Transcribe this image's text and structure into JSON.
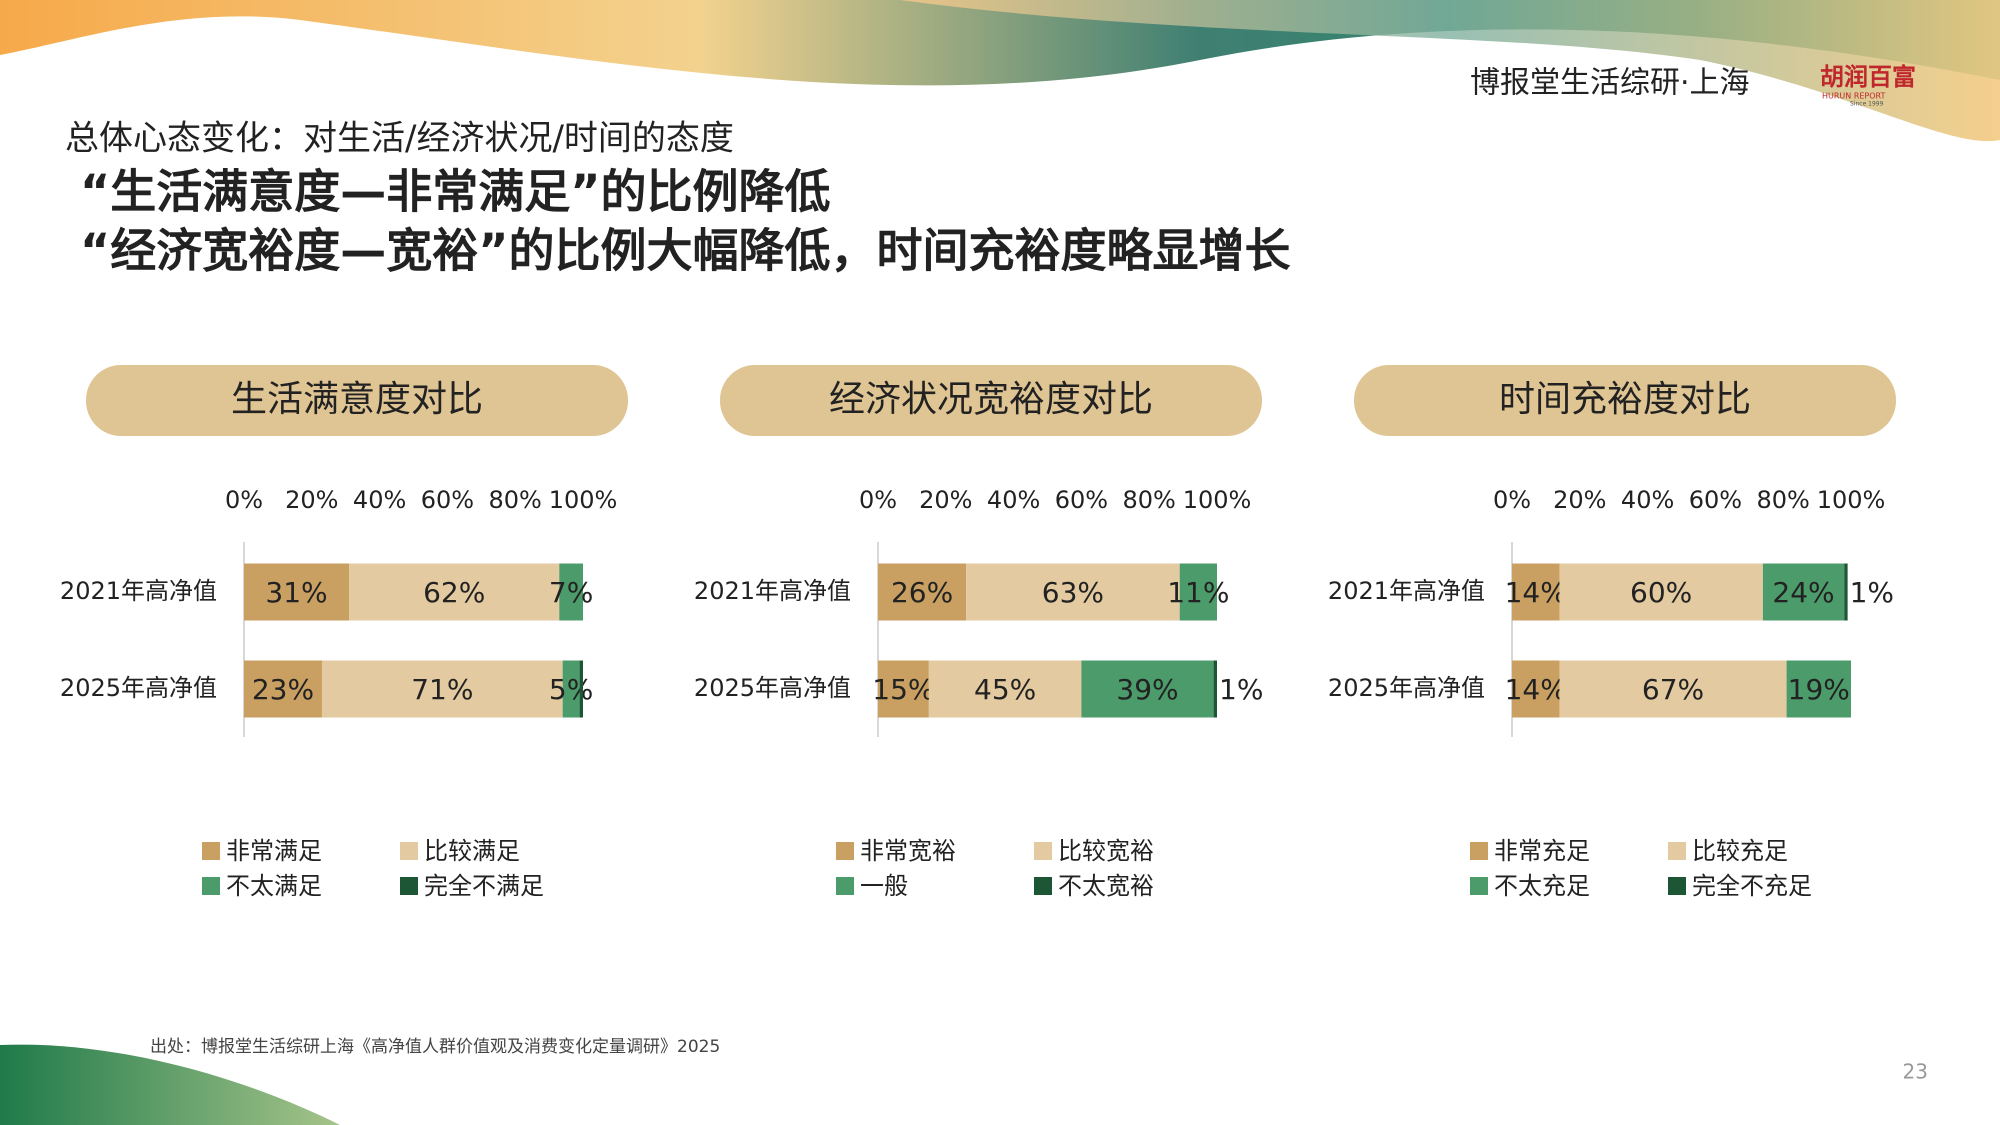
{
  "header": {
    "subtitle": "总体心态变化：对生活/经济状况/时间的态度",
    "headlines": [
      "“生活满意度—非常满足”的比例降低",
      "“经济宽裕度—宽裕”的比例大幅降低，时间充裕度略显增长"
    ],
    "brand": "博报堂生活综研·上海",
    "logo": "胡润百富",
    "logo_sub": "HURUN REPORT",
    "logo_since": "Since 1999"
  },
  "chart_data": [
    {
      "type": "bar",
      "orientation": "horizontal",
      "stacked": true,
      "title": "生活满意度对比",
      "categories": [
        "2021年高净值",
        "2025年高净值"
      ],
      "xlim": [
        0,
        100
      ],
      "xticks": [
        {
          "value": 0,
          "label": "0%"
        },
        {
          "value": 20,
          "label": "20%"
        },
        {
          "value": 40,
          "label": "40%"
        },
        {
          "value": 60,
          "label": "60%"
        },
        {
          "value": 80,
          "label": "80%"
        },
        {
          "value": 100,
          "label": "100%"
        }
      ],
      "series": [
        {
          "name": "非常满足",
          "color": "#c9a062",
          "values": [
            31,
            23
          ],
          "value_labels": [
            "31%",
            "23%"
          ]
        },
        {
          "name": "比较满足",
          "color": "#e3caa0",
          "values": [
            62,
            71
          ],
          "value_labels": [
            "62%",
            "71%"
          ]
        },
        {
          "name": "不太满足",
          "color": "#4c9b6b",
          "values": [
            7,
            5
          ],
          "value_labels": [
            "7%",
            "5%"
          ]
        },
        {
          "name": "完全不满足",
          "color": "#1d5634",
          "values": [
            0,
            1
          ]
        }
      ]
    },
    {
      "type": "bar",
      "orientation": "horizontal",
      "stacked": true,
      "title": "经济状况宽裕度对比",
      "categories": [
        "2021年高净值",
        "2025年高净值"
      ],
      "xlim": [
        0,
        100
      ],
      "xticks": [
        {
          "value": 0,
          "label": "0%"
        },
        {
          "value": 20,
          "label": "20%"
        },
        {
          "value": 40,
          "label": "40%"
        },
        {
          "value": 60,
          "label": "60%"
        },
        {
          "value": 80,
          "label": "80%"
        },
        {
          "value": 100,
          "label": "100%"
        }
      ],
      "series": [
        {
          "name": "非常宽裕",
          "color": "#c9a062",
          "values": [
            26,
            15
          ],
          "value_labels": [
            "26%",
            "15%"
          ]
        },
        {
          "name": "比较宽裕",
          "color": "#e3caa0",
          "values": [
            63,
            45
          ],
          "value_labels": [
            "63%",
            "45%"
          ]
        },
        {
          "name": "一般",
          "color": "#4c9b6b",
          "values": [
            11,
            39
          ],
          "value_labels": [
            "11%",
            "39%"
          ]
        },
        {
          "name": "不太宽裕",
          "color": "#1d5634",
          "values": [
            0,
            1
          ],
          "value_labels": [
            null,
            "1%"
          ]
        }
      ]
    },
    {
      "type": "bar",
      "orientation": "horizontal",
      "stacked": true,
      "title": "时间充裕度对比",
      "categories": [
        "2021年高净值",
        "2025年高净值"
      ],
      "xlim": [
        0,
        100
      ],
      "xticks": [
        {
          "value": 0,
          "label": "0%"
        },
        {
          "value": 20,
          "label": "20%"
        },
        {
          "value": 40,
          "label": "40%"
        },
        {
          "value": 60,
          "label": "60%"
        },
        {
          "value": 80,
          "label": "80%"
        },
        {
          "value": 100,
          "label": "100%"
        }
      ],
      "series": [
        {
          "name": "非常充足",
          "color": "#c9a062",
          "values": [
            14,
            14
          ],
          "value_labels": [
            "14%",
            "14%"
          ]
        },
        {
          "name": "比较充足",
          "color": "#e3caa0",
          "values": [
            60,
            67
          ],
          "value_labels": [
            "60%",
            "67%"
          ]
        },
        {
          "name": "不太充足",
          "color": "#4c9b6b",
          "values": [
            24,
            19
          ],
          "value_labels": [
            "24%",
            "19%"
          ]
        },
        {
          "name": "完全不充足",
          "color": "#1d5634",
          "values": [
            1,
            0
          ],
          "value_labels": [
            "1%",
            null
          ]
        }
      ]
    }
  ],
  "source": "出处：博报堂生活综研上海《高净值人群价值观及消费变化定量调研》2025",
  "page_number": "23"
}
